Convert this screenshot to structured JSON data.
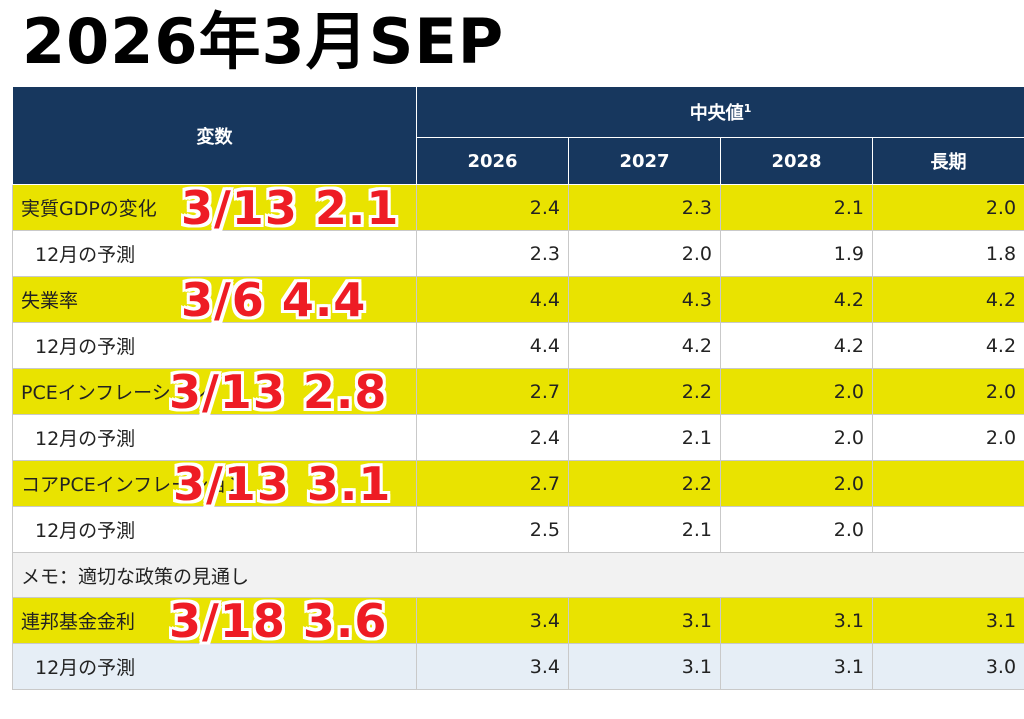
{
  "title": "2026年3月SEP",
  "header": {
    "variable": "変数",
    "median": "中央値",
    "median_sup": "1",
    "years": [
      "2026",
      "2027",
      "2028",
      "長期"
    ]
  },
  "rows": {
    "gdp": {
      "label": "実質GDPの変化",
      "values": [
        "2.4",
        "2.3",
        "2.1",
        "2.0"
      ],
      "annotation": "3/13  2.1"
    },
    "gdp_dec": {
      "label": "12月の予測",
      "values": [
        "2.3",
        "2.0",
        "1.9",
        "1.8"
      ]
    },
    "unemp": {
      "label": "失業率",
      "values": [
        "4.4",
        "4.3",
        "4.2",
        "4.2"
      ],
      "annotation": "3/6  4.4"
    },
    "unemp_dec": {
      "label": "12月の予測",
      "values": [
        "4.4",
        "4.2",
        "4.2",
        "4.2"
      ]
    },
    "pce": {
      "label": "PCEインフレーション",
      "values": [
        "2.7",
        "2.2",
        "2.0",
        "2.0"
      ],
      "annotation": "3/13 2.8"
    },
    "pce_dec": {
      "label": "12月の予測",
      "values": [
        "2.4",
        "2.1",
        "2.0",
        "2.0"
      ]
    },
    "core": {
      "label": "コアPCEインフレーション",
      "values": [
        "2.7",
        "2.2",
        "2.0",
        ""
      ],
      "annotation": "3/13  3.1"
    },
    "core_dec": {
      "label": "12月の予測",
      "values": [
        "2.5",
        "2.1",
        "2.0",
        ""
      ]
    },
    "memo": {
      "label": "メモ：適切な政策の見通し"
    },
    "ffr": {
      "label": "連邦基金金利",
      "values": [
        "3.4",
        "3.1",
        "3.1",
        "3.1"
      ],
      "annotation": "3/18 3.6"
    },
    "ffr_dec": {
      "label": "12月の予測",
      "values": [
        "3.4",
        "3.1",
        "3.1",
        "3.0"
      ]
    }
  },
  "colors": {
    "header_bg": "#17375e",
    "highlight": "#e9e300",
    "annotation": "#ee1c24"
  }
}
